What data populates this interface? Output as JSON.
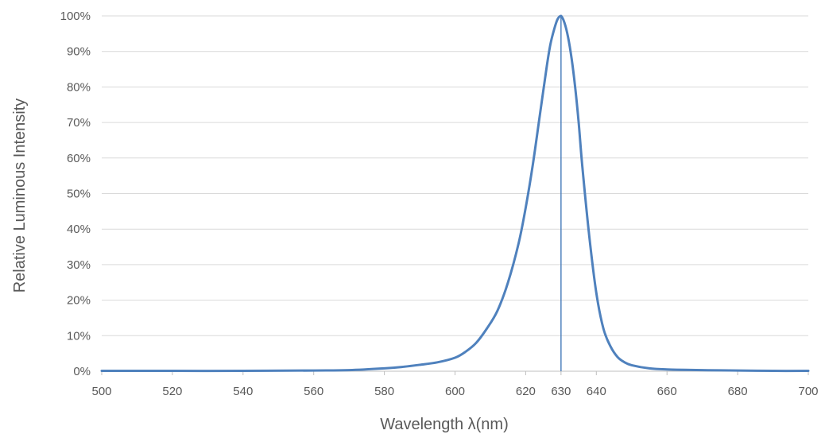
{
  "chart_data": {
    "type": "line",
    "title": "",
    "xlabel": "Wavelength λ(nm)",
    "ylabel": "Relative Luminous Intensity",
    "xlim": [
      500,
      700
    ],
    "ylim": [
      0,
      100
    ],
    "x_ticks": [
      500,
      520,
      540,
      560,
      580,
      600,
      620,
      630,
      640,
      660,
      680,
      700
    ],
    "x_tick_labels": [
      "500",
      "520",
      "540",
      "560",
      "580",
      "600",
      "620",
      "630",
      "640",
      "660",
      "680",
      "700"
    ],
    "y_ticks": [
      0,
      10,
      20,
      30,
      40,
      50,
      60,
      70,
      80,
      90,
      100
    ],
    "y_tick_labels": [
      "0%",
      "10%",
      "20%",
      "30%",
      "40%",
      "50%",
      "60%",
      "70%",
      "80%",
      "90%",
      "100%"
    ],
    "grid": "horizontal",
    "legend": "none",
    "peak_wavelength": 630,
    "series_color": "#4f81bd",
    "grid_color": "#d9d9d9",
    "axis_color": "#bfbfbf",
    "series": [
      {
        "x": [
          500,
          520,
          540,
          560,
          570,
          580,
          585,
          590,
          595,
          600,
          603,
          606,
          609,
          612,
          615,
          618,
          620,
          622,
          624,
          626,
          627,
          628,
          629,
          630,
          631,
          632,
          633,
          634,
          635,
          636,
          638,
          640,
          642,
          644,
          646,
          648,
          650,
          655,
          660,
          670,
          680,
          690,
          700
        ],
        "y": [
          0.1,
          0.1,
          0.1,
          0.2,
          0.3,
          0.8,
          1.2,
          1.8,
          2.5,
          3.8,
          5.5,
          8,
          12,
          17,
          25,
          36,
          46,
          58,
          72,
          86,
          92,
          96,
          99,
          100,
          98,
          94,
          88,
          80,
          70,
          58,
          38,
          22,
          12,
          7,
          4,
          2.5,
          1.7,
          0.8,
          0.5,
          0.3,
          0.2,
          0.1,
          0.1
        ]
      }
    ]
  }
}
